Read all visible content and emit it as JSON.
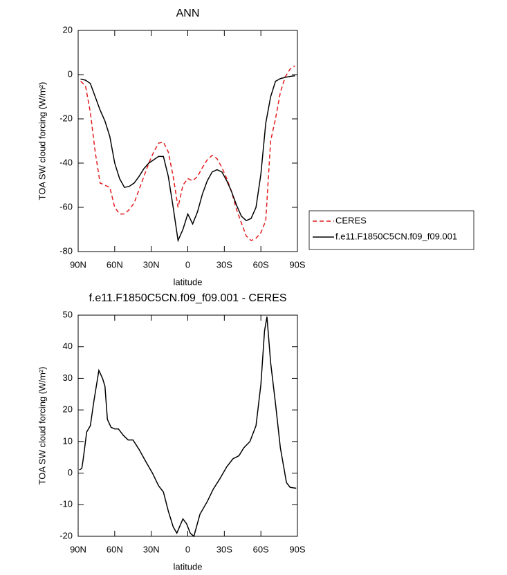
{
  "chart_data": [
    {
      "type": "line",
      "title": "ANN",
      "xlabel": "latitude",
      "ylabel": "TOA SW cloud forcing (W/m²)",
      "xlim": [
        90,
        -90
      ],
      "xticks": [
        {
          "value": 90,
          "label": "90N"
        },
        {
          "value": 60,
          "label": "60N"
        },
        {
          "value": 30,
          "label": "30N"
        },
        0,
        {
          "value": -30,
          "label": "30S"
        },
        {
          "value": -60,
          "label": "60S"
        },
        {
          "value": -90,
          "label": "90S"
        }
      ],
      "ylim": [
        -80,
        20
      ],
      "yticks": [
        -80,
        -60,
        -40,
        -20,
        0,
        20
      ],
      "legend": "right",
      "x": [
        88,
        84,
        80,
        76,
        72,
        68,
        64,
        60,
        56,
        52,
        48,
        44,
        40,
        36,
        32,
        28,
        24,
        20,
        16,
        12,
        8,
        4,
        0,
        -4,
        -8,
        -12,
        -16,
        -20,
        -24,
        -28,
        -32,
        -36,
        -40,
        -44,
        -48,
        -52,
        -56,
        -60,
        -64,
        -68,
        -72,
        -76,
        -80,
        -84,
        -88
      ],
      "series": [
        {
          "name": "CERES",
          "color": "#e41a1c",
          "line_style": "dashed",
          "values": [
            -3,
            -5,
            -17,
            -35,
            -49,
            -50,
            -51,
            -60,
            -63,
            -63,
            -61,
            -58,
            -52,
            -46,
            -40,
            -35,
            -31,
            -30.5,
            -35,
            -46,
            -60,
            -50,
            -47,
            -48,
            -46,
            -42,
            -38.5,
            -36.5,
            -38,
            -42,
            -47,
            -53,
            -61,
            -67,
            -73,
            -75,
            -74,
            -71.5,
            -66,
            -30,
            -20,
            -8,
            -1,
            2.5,
            4
          ]
        },
        {
          "name": "f.e11.F1850C5CN.f09_f09.001",
          "color": "#000000",
          "line_style": "solid",
          "values": [
            -2,
            -2.5,
            -4,
            -10,
            -16,
            -21,
            -28,
            -40,
            -47,
            -51,
            -50.5,
            -49,
            -46,
            -42.5,
            -40,
            -38.5,
            -37,
            -37,
            -46,
            -60,
            -75,
            -70,
            -63,
            -67.5,
            -62,
            -54,
            -48,
            -44,
            -43,
            -44,
            -48,
            -53,
            -59,
            -64,
            -66,
            -65,
            -60,
            -45,
            -22,
            -10,
            -3,
            -1.8,
            -1.2,
            -0.8,
            -0.5
          ]
        }
      ]
    },
    {
      "type": "line",
      "title": "f.e11.F1850C5CN.f09_f09.001 - CERES",
      "xlabel": "latitude",
      "ylabel": "TOA SW cloud forcing (W/m²)",
      "xlim": [
        90,
        -90
      ],
      "xticks": [
        {
          "value": 90,
          "label": "90N"
        },
        {
          "value": 60,
          "label": "60N"
        },
        {
          "value": 30,
          "label": "30N"
        },
        0,
        {
          "value": -30,
          "label": "30S"
        },
        {
          "value": -60,
          "label": "60S"
        },
        {
          "value": -90,
          "label": "90S"
        }
      ],
      "ylim": [
        -20,
        50
      ],
      "yticks": [
        -20,
        -10,
        0,
        10,
        20,
        30,
        40,
        50
      ],
      "x": [
        89,
        87,
        86,
        83,
        80,
        77,
        73,
        70,
        68,
        66,
        63,
        60,
        57,
        53,
        49,
        45,
        40,
        35,
        29,
        24,
        20,
        16,
        12,
        9,
        4,
        1,
        -2,
        -5,
        -10,
        -16,
        -21,
        -26,
        -32,
        -37,
        -42,
        -46,
        -51,
        -56,
        -60,
        -63,
        -65,
        -68,
        -72,
        -76,
        -81,
        -84,
        -89
      ],
      "color": "#000000",
      "values": [
        1,
        1.5,
        4,
        13,
        15,
        23,
        32.5,
        30,
        27.5,
        17,
        14.5,
        14,
        14,
        12,
        10.5,
        10.5,
        7.5,
        4,
        0,
        -4,
        -6,
        -12,
        -17,
        -19,
        -14.5,
        -16,
        -19,
        -20,
        -13,
        -9,
        -5,
        -2,
        2,
        4.5,
        5.5,
        8,
        10,
        15,
        28,
        45,
        49.5,
        35,
        22,
        8,
        -3,
        -4.5,
        -4.8
      ]
    }
  ]
}
